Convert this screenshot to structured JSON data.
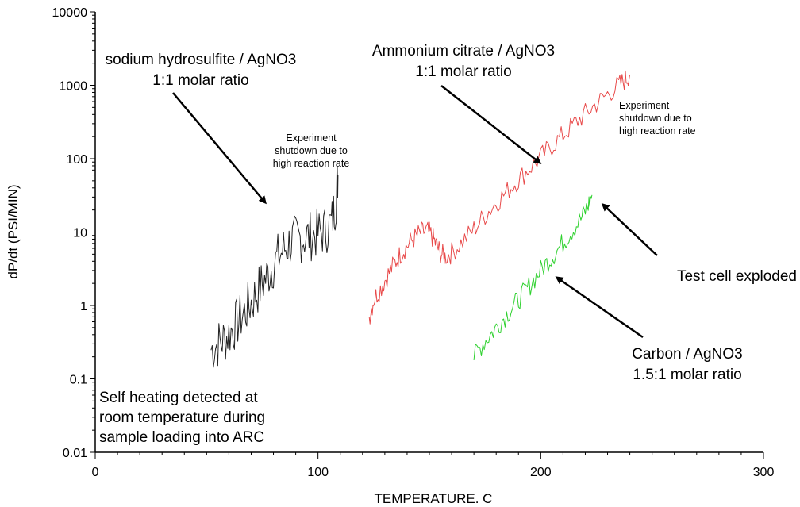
{
  "chart_data": {
    "type": "line",
    "xlabel": "TEMPERATURE. C",
    "ylabel": "dP/dt (PSI/MIN)",
    "xlim": [
      0,
      300
    ],
    "ylim": [
      0.01,
      10000
    ],
    "yscale": "log",
    "grid": false,
    "xticks": [
      0,
      100,
      200,
      300
    ],
    "xtick_labels": [
      "0",
      "100",
      "200",
      "300"
    ],
    "yticks": [
      0.01,
      0.1,
      1,
      10,
      100,
      1000,
      10000
    ],
    "ytick_labels": [
      "0.01",
      "0.1",
      "1",
      "10",
      "100",
      "1000",
      "10000"
    ],
    "series": [
      {
        "color": "#222222",
        "points": [
          [
            52,
            0.25
          ],
          [
            55,
            0.3
          ],
          [
            58,
            0.35
          ],
          [
            61,
            0.45
          ],
          [
            64,
            0.6
          ],
          [
            67,
            0.8
          ],
          [
            70,
            1.1
          ],
          [
            73,
            1.6
          ],
          [
            76,
            2.2
          ],
          [
            79,
            3.2
          ],
          [
            82,
            4.5
          ],
          [
            85,
            6.0
          ],
          [
            88,
            7.5
          ],
          [
            91,
            8.0
          ],
          [
            94,
            8.5
          ],
          [
            97,
            9.0
          ],
          [
            100,
            9.5
          ],
          [
            103,
            10.5
          ],
          [
            106,
            13
          ],
          [
            108,
            25
          ],
          [
            109,
            60
          ]
        ]
      },
      {
        "color": "#e84a4a",
        "points": [
          [
            123,
            0.7
          ],
          [
            125,
            1.2
          ],
          [
            128,
            1.7
          ],
          [
            131,
            2.5
          ],
          [
            134,
            3.6
          ],
          [
            137,
            5.0
          ],
          [
            140,
            6.5
          ],
          [
            143,
            8.2
          ],
          [
            146,
            9.8
          ],
          [
            149,
            10.5
          ],
          [
            151,
            9.0
          ],
          [
            153,
            6.8
          ],
          [
            155,
            5.2
          ],
          [
            157,
            4.6
          ],
          [
            160,
            5.2
          ],
          [
            165,
            7.5
          ],
          [
            170,
            11
          ],
          [
            175,
            17
          ],
          [
            180,
            25
          ],
          [
            185,
            36
          ],
          [
            190,
            52
          ],
          [
            195,
            74
          ],
          [
            200,
            105
          ],
          [
            205,
            150
          ],
          [
            210,
            210
          ],
          [
            215,
            295
          ],
          [
            220,
            410
          ],
          [
            225,
            560
          ],
          [
            230,
            760
          ],
          [
            235,
            1000
          ],
          [
            238,
            1200
          ],
          [
            240,
            1400
          ]
        ]
      },
      {
        "color": "#2ed12e",
        "points": [
          [
            170,
            0.2
          ],
          [
            174,
            0.3
          ],
          [
            178,
            0.42
          ],
          [
            182,
            0.6
          ],
          [
            186,
            0.85
          ],
          [
            190,
            1.2
          ],
          [
            194,
            1.7
          ],
          [
            198,
            2.5
          ],
          [
            202,
            3.6
          ],
          [
            206,
            5.0
          ],
          [
            210,
            7.2
          ],
          [
            214,
            10.5
          ],
          [
            218,
            15
          ],
          [
            221,
            22
          ],
          [
            223,
            32
          ]
        ]
      }
    ]
  },
  "annotations": {
    "sodium_line1": "sodium hydrosulfite / AgNO3",
    "sodium_line2": "1:1 molar ratio",
    "ammonium_line1": "Ammonium citrate / AgNO3",
    "ammonium_line2": "1:1 molar ratio",
    "shutdown1_line1": "Experiment",
    "shutdown1_line2": "shutdown due to",
    "shutdown1_line3": "high reaction rate",
    "shutdown2_line1": "Experiment",
    "shutdown2_line2": "shutdown due to",
    "shutdown2_line3": "high reaction rate",
    "test_cell": "Test cell exploded",
    "carbon_line1": "Carbon / AgNO3",
    "carbon_line2": "1.5:1 molar ratio",
    "self_line1": "Self heating detected at",
    "self_line2": "room temperature during",
    "self_line3": "sample loading into ARC"
  }
}
